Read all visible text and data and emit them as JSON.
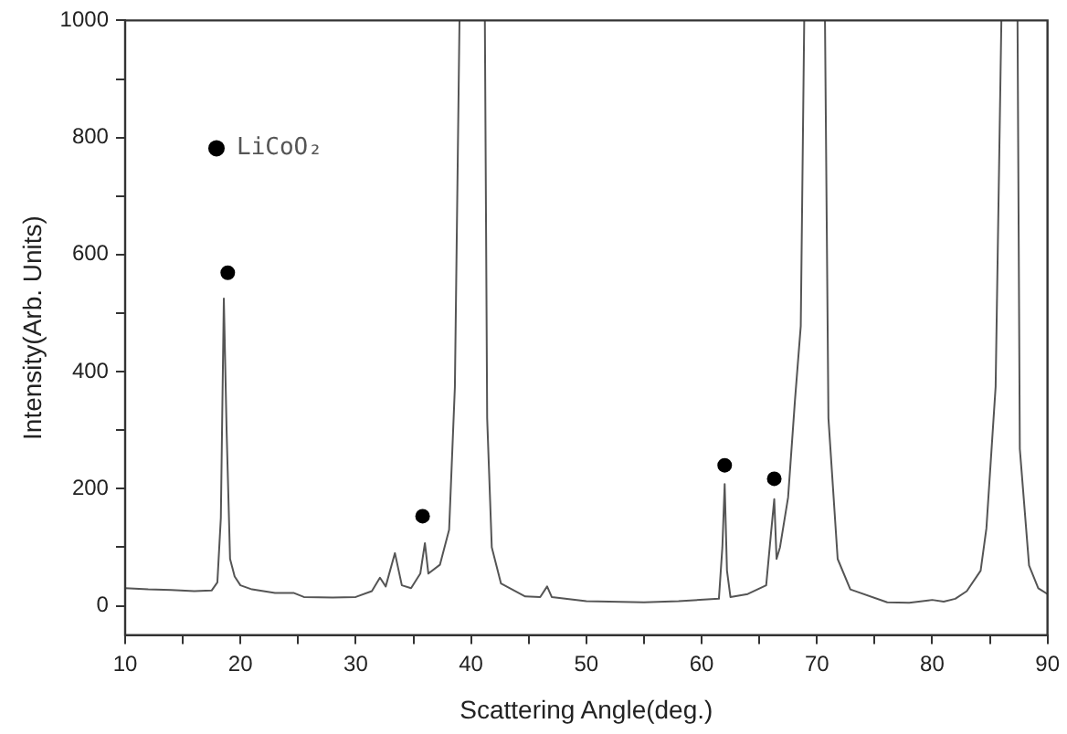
{
  "chart_data": {
    "type": "line",
    "xlabel": "Scattering Angle(deg.)",
    "ylabel": "Intensity(Arb. Units)",
    "xlim": [
      10,
      90
    ],
    "ylim": [
      -50,
      1000
    ],
    "xticks": [
      10,
      {
        "value": 15,
        "label": null
      },
      20,
      {
        "value": 25,
        "label": null
      },
      30,
      {
        "value": 35,
        "label": null
      },
      40,
      {
        "value": 45,
        "label": null
      },
      50,
      {
        "value": 55,
        "label": null
      },
      60,
      {
        "value": 65,
        "label": null
      },
      70,
      {
        "value": 75,
        "label": null
      },
      80,
      {
        "value": 85,
        "label": null
      },
      90
    ],
    "yticks": [
      0,
      {
        "value": 100,
        "label": null
      },
      200,
      {
        "value": 300,
        "label": null
      },
      400,
      {
        "value": 500,
        "label": null
      },
      600,
      {
        "value": 700,
        "label": null
      },
      800,
      {
        "value": 900,
        "label": null
      },
      1000
    ],
    "grid": false,
    "legend": "top left",
    "series": [
      {
        "type": "line",
        "color": "#555555",
        "marker": "none",
        "line_style": "solid",
        "x": [
          10,
          12,
          14,
          16,
          17.5,
          18.0,
          18.3,
          18.56,
          18.8,
          19.1,
          19.5,
          20,
          21,
          23,
          24.6,
          25.5,
          28,
          30,
          31.4,
          32.1,
          32.6,
          33.4,
          34.0,
          34.8,
          35.6,
          36.0,
          36.3,
          37.3,
          38.1,
          38.6,
          39.0,
          40,
          41.2,
          41.4,
          41.8,
          42.6,
          44.7,
          46.0,
          46.6,
          47.0,
          50,
          55,
          58,
          61.5,
          61.8,
          62.0,
          62.2,
          62.5,
          64,
          65.6,
          66.0,
          66.3,
          66.5,
          66.8,
          67.5,
          68.1,
          68.6,
          68.9,
          69.8,
          70.7,
          71.0,
          71.8,
          72.9,
          76.1,
          78,
          80,
          81,
          82,
          83,
          84.2,
          84.7,
          85.5,
          86.0,
          86.7,
          87.4,
          87.6,
          88.4,
          89.2,
          90
        ],
        "values": [
          30,
          28,
          27,
          25,
          26,
          40,
          150,
          525,
          300,
          80,
          50,
          35,
          28,
          22,
          22,
          15,
          14,
          15,
          25,
          48,
          33,
          90,
          35,
          30,
          55,
          107,
          55,
          70,
          130,
          374,
          1000,
          null,
          1000,
          320,
          100,
          38,
          16,
          15,
          33,
          15,
          8,
          6,
          8,
          12,
          100,
          208,
          60,
          15,
          20,
          35,
          120,
          182,
          80,
          100,
          185,
          352,
          478,
          1000,
          null,
          1000,
          320,
          80,
          28,
          6,
          5,
          10,
          7,
          12,
          25,
          60,
          132,
          374,
          1000,
          null,
          1000,
          268,
          69,
          30,
          20
        ]
      },
      {
        "type": "scatter",
        "name": "LiCoO₂",
        "color": "#000000",
        "marker": "circle",
        "x": [
          18.9,
          35.8,
          62.0,
          66.3
        ],
        "values": [
          569,
          153,
          240,
          217
        ]
      }
    ]
  }
}
